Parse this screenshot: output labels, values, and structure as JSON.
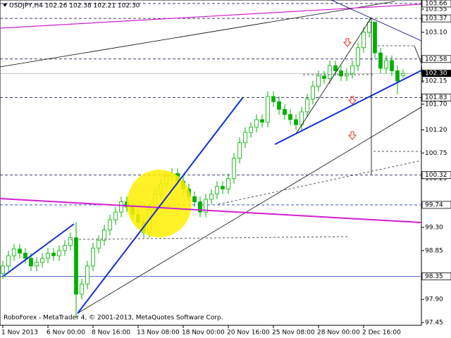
{
  "chart_data": {
    "type": "candlestick",
    "title": "USDJPY,H4  102.26 102.38 102.21 102.30",
    "footer": "RoboForex - MetaTrader 4, © 2001-2013, MetaQuotes Software Corp.",
    "color": "#00b000",
    "categories": [
      "1 Nov 2013",
      null,
      null,
      null,
      null,
      null,
      null,
      null,
      "6 Nov 00:00",
      null,
      null,
      null,
      null,
      null,
      null,
      null,
      "8 Nov 16:00",
      null,
      null,
      null,
      null,
      null,
      null,
      null,
      "13 Nov 08:00",
      null,
      null,
      null,
      null,
      null,
      null,
      null,
      "18 Nov 00:00",
      null,
      null,
      null,
      null,
      null,
      null,
      null,
      "20 Nov 16:00",
      null,
      null,
      null,
      null,
      null,
      null,
      null,
      "25 Nov 08:00",
      null,
      null,
      null,
      null,
      null,
      null,
      null,
      "28 Nov 00:00",
      null,
      null,
      null,
      null,
      null,
      null,
      null,
      "2 Dec 16:00",
      null,
      null,
      null,
      null,
      null,
      null,
      null
    ],
    "open": [
      98.4,
      98.55,
      98.75,
      98.88,
      98.8,
      98.7,
      98.55,
      98.62,
      98.7,
      98.8,
      98.75,
      98.85,
      98.95,
      99.1,
      98.0,
      98.2,
      98.55,
      98.9,
      99.05,
      99.25,
      99.45,
      99.6,
      99.8,
      99.7,
      99.55,
      99.4,
      99.2,
      99.65,
      99.95,
      100.15,
      100.3,
      100.35,
      100.2,
      100.05,
      99.9,
      99.8,
      99.6,
      99.85,
      99.95,
      100.1,
      100.05,
      100.25,
      100.65,
      100.95,
      101.15,
      101.25,
      101.4,
      101.35,
      101.85,
      101.75,
      101.6,
      101.5,
      101.4,
      101.3,
      101.55,
      101.8,
      102.05,
      102.25,
      102.2,
      102.45,
      102.35,
      102.25,
      102.3,
      102.45,
      102.8,
      103.1,
      103.3,
      102.7,
      102.4,
      102.55,
      102.35,
      102.26
    ],
    "high": [
      98.65,
      98.85,
      98.98,
      98.98,
      98.9,
      98.8,
      98.72,
      98.8,
      98.9,
      98.9,
      98.95,
      99.05,
      99.2,
      99.4,
      98.3,
      98.65,
      99.0,
      99.15,
      99.35,
      99.55,
      99.7,
      99.9,
      99.9,
      99.8,
      99.65,
      99.5,
      99.75,
      100.05,
      100.25,
      100.4,
      100.45,
      100.45,
      100.3,
      100.15,
      100.0,
      99.9,
      99.95,
      100.05,
      100.2,
      100.2,
      100.35,
      100.75,
      101.05,
      101.25,
      101.35,
      101.5,
      101.5,
      101.95,
      101.95,
      101.85,
      101.7,
      101.6,
      101.5,
      101.65,
      101.9,
      102.15,
      102.35,
      102.35,
      102.55,
      102.55,
      102.45,
      102.4,
      102.55,
      102.9,
      103.2,
      103.37,
      103.3,
      102.8,
      102.65,
      102.65,
      102.45,
      102.38
    ],
    "low": [
      98.3,
      98.45,
      98.65,
      98.7,
      98.6,
      98.45,
      98.45,
      98.52,
      98.6,
      98.65,
      98.65,
      98.75,
      98.85,
      97.55,
      97.9,
      98.1,
      98.45,
      98.8,
      98.95,
      99.15,
      99.35,
      99.5,
      99.6,
      99.45,
      99.3,
      99.1,
      99.1,
      99.55,
      99.85,
      100.05,
      100.2,
      100.1,
      99.95,
      99.8,
      99.7,
      99.5,
      99.5,
      99.75,
      99.85,
      99.95,
      99.95,
      100.15,
      100.55,
      100.85,
      101.05,
      101.15,
      101.25,
      101.25,
      101.65,
      101.5,
      101.4,
      101.3,
      101.2,
      101.2,
      101.45,
      101.7,
      101.95,
      102.1,
      102.1,
      102.25,
      102.15,
      102.15,
      102.2,
      102.35,
      102.7,
      103.0,
      102.6,
      102.3,
      102.3,
      102.25,
      101.9,
      102.21
    ],
    "close": [
      98.55,
      98.75,
      98.88,
      98.8,
      98.7,
      98.55,
      98.62,
      98.7,
      98.8,
      98.75,
      98.85,
      98.95,
      99.1,
      98.0,
      98.2,
      98.55,
      98.9,
      99.05,
      99.25,
      99.45,
      99.6,
      99.8,
      99.7,
      99.55,
      99.4,
      99.2,
      99.65,
      99.95,
      100.15,
      100.3,
      100.35,
      100.2,
      100.05,
      99.9,
      99.8,
      99.6,
      99.85,
      99.95,
      100.1,
      100.05,
      100.25,
      100.65,
      100.95,
      101.15,
      101.25,
      101.4,
      101.35,
      101.85,
      101.75,
      101.6,
      101.5,
      101.4,
      101.3,
      101.55,
      101.8,
      102.05,
      102.25,
      102.2,
      102.45,
      102.35,
      102.25,
      102.3,
      102.45,
      102.8,
      103.1,
      103.3,
      102.7,
      102.4,
      102.55,
      102.35,
      102.15,
      102.3
    ],
    "ylim": [
      97.45,
      103.66
    ],
    "yticks": [
      {
        "value": 97.45,
        "label": "97.45"
      },
      {
        "value": 97.9,
        "label": "97.90"
      },
      98.85,
      {
        "value": 99.3,
        "label": "99.30"
      },
      100.25,
      100.75,
      {
        "value": 101.2,
        "label": "101.20"
      },
      {
        "value": 101.7,
        "label": "101.70"
      },
      102.15,
      {
        "value": 103.1,
        "label": "103.10"
      },
      103.55
    ],
    "levels": [
      103.66,
      103.37,
      102.58,
      101.83,
      100.32,
      99.74,
      98.35
    ],
    "bid": {
      "value": 102.3,
      "label": "102.30"
    }
  }
}
